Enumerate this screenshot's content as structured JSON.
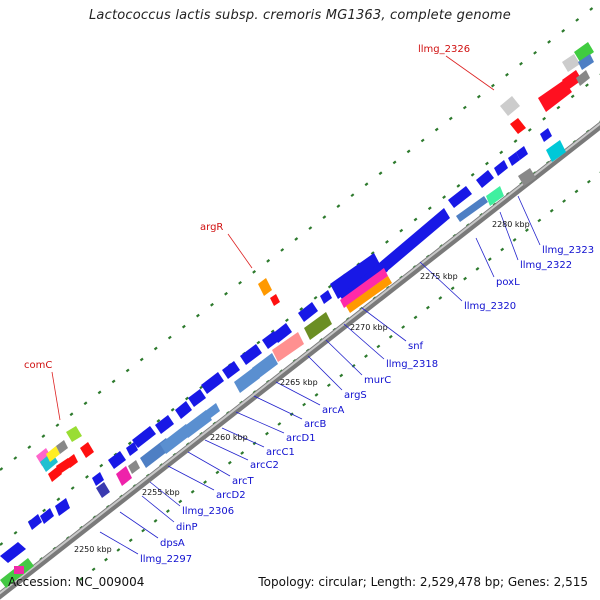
{
  "title": "Lactococcus lactis subsp. cremoris MG1363, complete genome",
  "footer": {
    "accession": "Accession: NC_009004",
    "summary": "Topology: circular; Length: 2,529,478 bp; Genes: 2,515"
  },
  "colors": {
    "backbone": "#8f8f8f",
    "tick": "#2d7a2d",
    "forward_gene": "#1616e8",
    "label_blue": "#1010d0",
    "label_red": "#d01010"
  },
  "scale_labels": [
    "2250 kbp",
    "2255 kbp",
    "2260 kbp",
    "2265 kbp",
    "2270 kbp",
    "2275 kbp",
    "2280 kbp"
  ],
  "reverse_gene_labels": [
    "llmg_2297",
    "dpsA",
    "dinP",
    "llmg_2306",
    "arcD2",
    "arcT",
    "arcC2",
    "arcC1",
    "arcD1",
    "arcB",
    "arcA",
    "argS",
    "murC",
    "llmg_2318",
    "snf",
    "llmg_2320",
    "poxL",
    "llmg_2322",
    "llmg_2323"
  ],
  "forward_gene_labels": [
    "comC",
    "argR",
    "llmg_2326"
  ]
}
